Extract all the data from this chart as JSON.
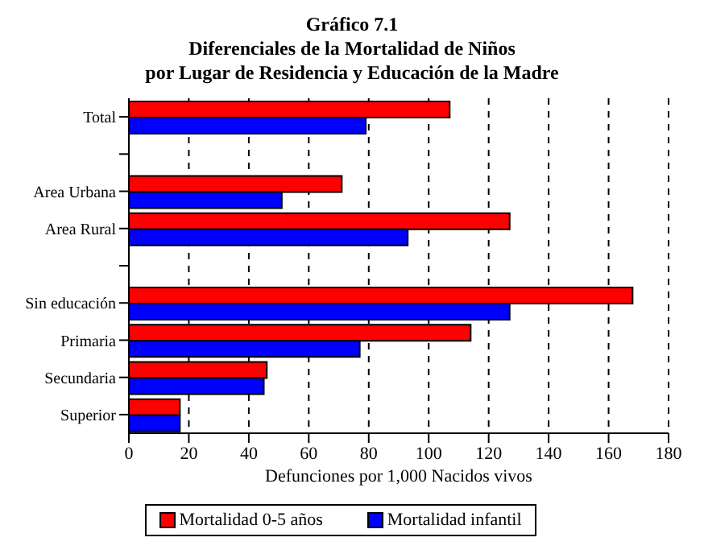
{
  "chart_data": {
    "type": "bar",
    "orientation": "horizontal",
    "title": "Gráfico 7.1",
    "subtitle": "Diferenciales de la Mortalidad de Niños\npor Lugar de Residencia y Educación de la Madre",
    "xlabel": "Defunciones por 1,000 Nacidos vivos",
    "categories": [
      "Total",
      null,
      "Area Urbana",
      "Area Rural",
      null,
      "Sin educación",
      "Primaria",
      "Secundaria",
      "Superior"
    ],
    "series": [
      {
        "name": "Mortalidad 0-5 años",
        "color": "#ff0000",
        "values": [
          107,
          null,
          71,
          127,
          null,
          168,
          114,
          46,
          17
        ]
      },
      {
        "name": "Mortalidad infantil",
        "color": "#0000ff",
        "values": [
          79,
          null,
          51,
          93,
          null,
          127,
          77,
          45,
          17
        ]
      }
    ],
    "xlim": [
      0,
      180
    ],
    "xticks": [
      0,
      20,
      40,
      60,
      80,
      100,
      120,
      140,
      160,
      180
    ],
    "grid": "x",
    "legend": "bottom"
  }
}
